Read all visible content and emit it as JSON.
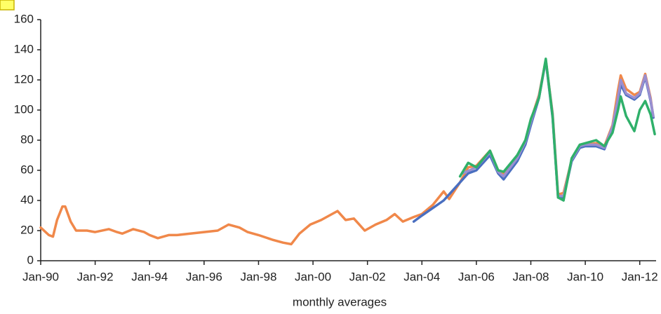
{
  "chart_data": {
    "type": "line",
    "xlabel": "monthly averages",
    "xlim": [
      1990,
      2012.6
    ],
    "ylim": [
      0,
      160
    ],
    "yticks": [
      0,
      20,
      40,
      60,
      80,
      100,
      120,
      140,
      160
    ],
    "xticks": [
      {
        "value": 1990,
        "label": "Jan-90"
      },
      {
        "value": 1992,
        "label": "Jan-92"
      },
      {
        "value": 1994,
        "label": "Jan-94"
      },
      {
        "value": 1996,
        "label": "Jan-96"
      },
      {
        "value": 1998,
        "label": "Jan-98"
      },
      {
        "value": 2000,
        "label": "Jan-00"
      },
      {
        "value": 2002,
        "label": "Jan-02"
      },
      {
        "value": 2004,
        "label": "Jan-04"
      },
      {
        "value": 2006,
        "label": "Jan-06"
      },
      {
        "value": 2008,
        "label": "Jan-08"
      },
      {
        "value": 2010,
        "label": "Jan-10"
      },
      {
        "value": 2012,
        "label": "Jan-12"
      }
    ],
    "series": [
      {
        "color": "#f0884a",
        "x": [
          1990.0,
          1990.3,
          1990.45,
          1990.6,
          1990.8,
          1990.9,
          1991.1,
          1991.3,
          1991.7,
          1992.0,
          1992.5,
          1992.8,
          1993.0,
          1993.4,
          1993.8,
          1994.0,
          1994.3,
          1994.7,
          1995.0,
          1995.5,
          1996.0,
          1996.5,
          1996.9,
          1997.3,
          1997.6,
          1998.0,
          1998.5,
          1998.9,
          1999.2,
          1999.5,
          1999.9,
          2000.3,
          2000.7,
          2000.9,
          2001.2,
          2001.5,
          2001.9,
          2002.3,
          2002.7,
          2003.0,
          2003.3,
          2003.7,
          2004.0,
          2004.4,
          2004.8,
          2005.0,
          2005.4,
          2005.7,
          2006.0,
          2006.5,
          2006.8,
          2007.0,
          2007.5,
          2007.8,
          2008.0,
          2008.3,
          2008.55,
          2008.8,
          2009.0,
          2009.2,
          2009.5,
          2009.8,
          2010.0,
          2010.4,
          2010.7,
          2011.0,
          2011.2,
          2011.3,
          2011.5,
          2011.8,
          2012.0,
          2012.2,
          2012.4,
          2012.5
        ],
        "values": [
          22,
          17,
          16,
          27,
          36,
          36,
          26,
          20,
          20,
          19,
          21,
          19,
          18,
          21,
          19,
          17,
          15,
          17,
          17,
          18,
          19,
          20,
          24,
          22,
          19,
          17,
          14,
          12,
          11,
          18,
          24,
          27,
          31,
          33,
          27,
          28,
          20,
          24,
          27,
          31,
          26,
          29,
          31,
          37,
          46,
          41,
          52,
          62,
          63,
          73,
          60,
          58,
          70,
          78,
          93,
          110,
          133,
          98,
          44,
          45,
          67,
          75,
          77,
          78,
          76,
          90,
          113,
          123,
          114,
          110,
          112,
          124,
          108,
          95
        ]
      },
      {
        "color": "#4a6fc0",
        "x": [
          2003.7,
          2004.0,
          2004.4,
          2004.8,
          2005.0,
          2005.4,
          2005.7,
          2006.0,
          2006.5,
          2006.8,
          2007.0,
          2007.5,
          2007.8,
          2008.0,
          2008.3,
          2008.55,
          2008.8,
          2009.0,
          2009.2,
          2009.5,
          2009.8,
          2010.0,
          2010.4,
          2010.7,
          2011.0,
          2011.2,
          2011.3,
          2011.5,
          2011.8,
          2012.0,
          2012.2,
          2012.4,
          2012.5
        ],
        "values": [
          26,
          30,
          35,
          40,
          44,
          52,
          58,
          60,
          70,
          58,
          54,
          66,
          77,
          90,
          108,
          133,
          95,
          42,
          42,
          66,
          75,
          76,
          76,
          74,
          88,
          105,
          117,
          110,
          107,
          110,
          122,
          106,
          95
        ]
      },
      {
        "color": "#9a8fd0",
        "x": [
          2005.5,
          2006.0,
          2006.5,
          2006.8,
          2007.0,
          2007.5,
          2007.8,
          2008.0,
          2008.3,
          2008.55,
          2008.8,
          2009.0,
          2009.2,
          2009.5,
          2009.8,
          2010.0,
          2010.4,
          2010.7,
          2011.0,
          2011.2,
          2011.3,
          2011.5,
          2011.8,
          2012.0,
          2012.2,
          2012.4,
          2012.5
        ],
        "values": [
          58,
          62,
          72,
          59,
          56,
          68,
          79,
          92,
          109,
          133,
          97,
          43,
          43,
          67,
          76,
          77,
          77,
          75,
          89,
          108,
          120,
          111,
          108,
          111,
          123,
          107,
          96
        ]
      },
      {
        "color": "#2fb06a",
        "x": [
          2005.4,
          2005.7,
          2006.0,
          2006.5,
          2006.8,
          2007.0,
          2007.5,
          2007.8,
          2008.0,
          2008.3,
          2008.55,
          2008.8,
          2009.0,
          2009.2,
          2009.5,
          2009.8,
          2010.0,
          2010.4,
          2010.7,
          2011.0,
          2011.2,
          2011.3,
          2011.5,
          2011.8,
          2012.0,
          2012.2,
          2012.4,
          2012.55
        ],
        "values": [
          56,
          65,
          62,
          73,
          60,
          59,
          70,
          80,
          94,
          108,
          134,
          96,
          42,
          40,
          68,
          77,
          78,
          80,
          76,
          85,
          100,
          109,
          96,
          86,
          100,
          106,
          97,
          84
        ]
      }
    ]
  }
}
